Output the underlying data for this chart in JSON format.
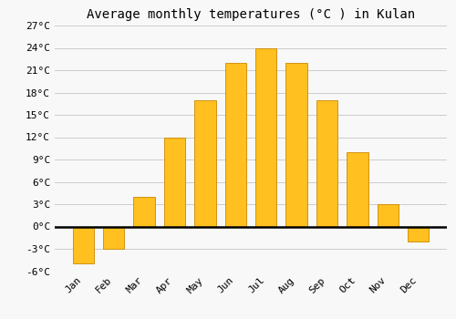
{
  "title": "Average monthly temperatures (°C ) in Kulan",
  "months": [
    "Jan",
    "Feb",
    "Mar",
    "Apr",
    "May",
    "Jun",
    "Jul",
    "Aug",
    "Sep",
    "Oct",
    "Nov",
    "Dec"
  ],
  "values": [
    -5,
    -3,
    4,
    12,
    17,
    22,
    24,
    22,
    17,
    10,
    3,
    -2
  ],
  "bar_color": "#FFC020",
  "bar_edge_color": "#CC8800",
  "background_color": "#F8F8F8",
  "grid_color": "#CCCCCC",
  "ylim": [
    -6,
    27
  ],
  "yticks": [
    -6,
    -3,
    0,
    3,
    6,
    9,
    12,
    15,
    18,
    21,
    24,
    27
  ],
  "ytick_labels": [
    "-6°C",
    "-3°C",
    "0°C",
    "3°C",
    "6°C",
    "9°C",
    "12°C",
    "15°C",
    "18°C",
    "21°C",
    "24°C",
    "27°C"
  ],
  "title_fontsize": 10,
  "tick_fontsize": 8,
  "font_family": "monospace",
  "bar_width": 0.7
}
